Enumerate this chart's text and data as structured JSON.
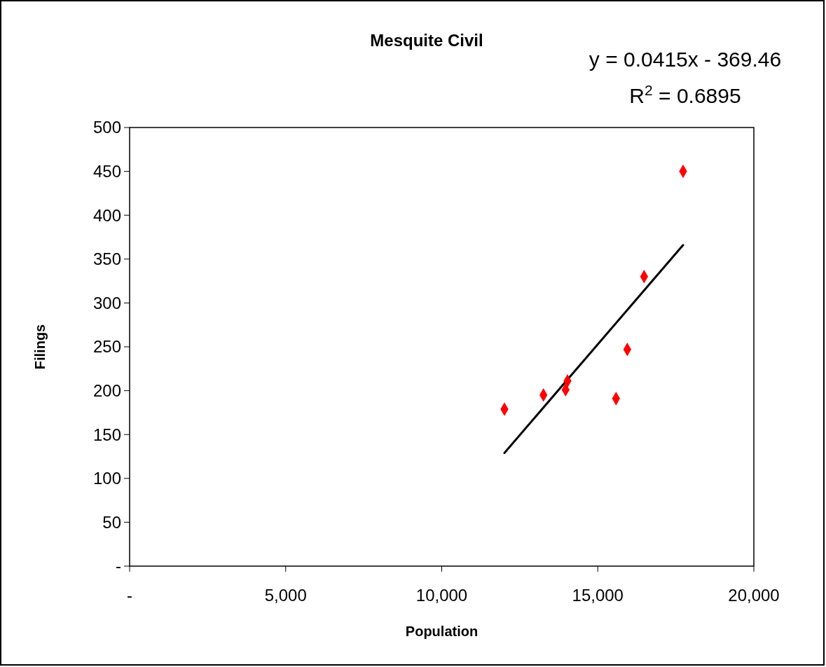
{
  "chart_data": {
    "type": "scatter",
    "title": "Mesquite Civil",
    "xlabel": "Population",
    "ylabel": "Filings",
    "annotations": [
      "y = 0.0415x - 369.46",
      "R$^{2}$ = 0.6895"
    ],
    "xlim": [
      0,
      20000
    ],
    "xticks": [
      {
        "value": 0,
        "label": "-"
      },
      {
        "value": 5000,
        "label": "5,000"
      },
      {
        "value": 10000,
        "label": "10,000"
      },
      {
        "value": 15000,
        "label": "15,000"
      },
      {
        "value": 20000,
        "label": "20,000"
      }
    ],
    "ylim": [
      0,
      500
    ],
    "yticks": [
      {
        "value": 0,
        "label": "-"
      },
      50,
      100,
      150,
      200,
      250,
      300,
      350,
      400,
      450,
      500
    ],
    "grid": false,
    "marker": "diamond",
    "series": [
      {
        "color": "#ff0000",
        "x": [
          12009,
          13259,
          14029,
          13969,
          15585,
          15945,
          16484,
          17733
        ],
        "values": [
          179,
          195,
          211,
          201,
          191,
          247,
          330,
          450
        ]
      },
      {
        "type": "line",
        "color": "#000000",
        "marker": "none",
        "x": [
          12009,
          17733
        ],
        "values": [
          129,
          366
        ]
      }
    ]
  }
}
